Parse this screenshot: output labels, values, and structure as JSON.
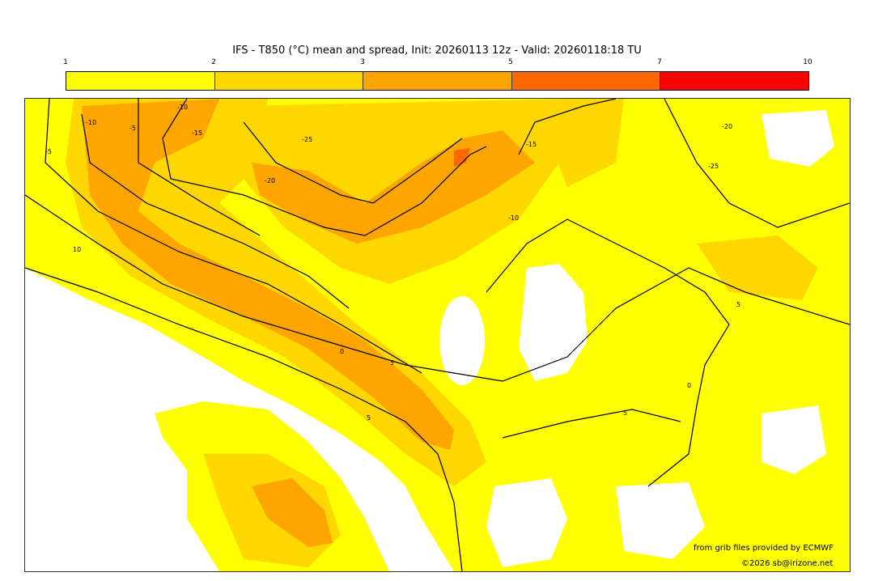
{
  "title": "IFS - T850 (°C) mean and spread, Init: 20260113 12z - Valid: 20260118:18 TU",
  "colorbar": {
    "ticks": [
      "1",
      "2",
      "3",
      "5",
      "7",
      "10"
    ],
    "colors": [
      "#ffff00",
      "#ffd700",
      "#ffa500",
      "#ff6600",
      "#ff0000"
    ]
  },
  "map": {
    "background": "#ffff00",
    "contour_labels": [
      "-5",
      "-10",
      "-5",
      "-15",
      "-20",
      "-25",
      "-15",
      "-20",
      "-25",
      "-10",
      "10",
      "5",
      "0",
      "5",
      "5",
      "5",
      "0",
      "-10"
    ]
  },
  "credits": {
    "line1": "from grib files provided by ECMWF",
    "line2": "©2026 sb@irizone.net"
  }
}
